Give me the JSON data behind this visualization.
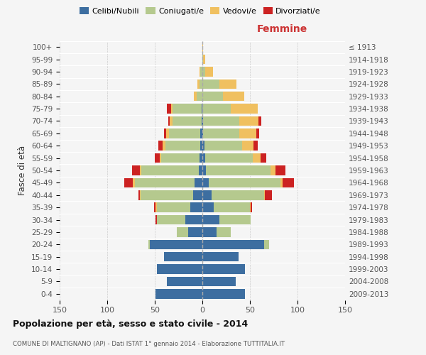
{
  "age_groups": [
    "0-4",
    "5-9",
    "10-14",
    "15-19",
    "20-24",
    "25-29",
    "30-34",
    "35-39",
    "40-44",
    "45-49",
    "50-54",
    "55-59",
    "60-64",
    "65-69",
    "70-74",
    "75-79",
    "80-84",
    "85-89",
    "90-94",
    "95-99",
    "100+"
  ],
  "birth_years": [
    "2009-2013",
    "2004-2008",
    "1999-2003",
    "1994-1998",
    "1989-1993",
    "1984-1988",
    "1979-1983",
    "1974-1978",
    "1969-1973",
    "1964-1968",
    "1959-1963",
    "1954-1958",
    "1949-1953",
    "1944-1948",
    "1939-1943",
    "1934-1938",
    "1929-1933",
    "1924-1928",
    "1919-1923",
    "1914-1918",
    "≤ 1913"
  ],
  "colors": {
    "celibi": "#3d6ea0",
    "coniugati": "#b5c98e",
    "vedovi": "#f0c060",
    "divorziati": "#cc2222"
  },
  "males": {
    "celibi": [
      49,
      37,
      48,
      40,
      55,
      15,
      18,
      13,
      10,
      8,
      4,
      3,
      2,
      2,
      1,
      1,
      0,
      0,
      0,
      0,
      0
    ],
    "coniugati": [
      0,
      0,
      0,
      0,
      2,
      12,
      30,
      35,
      55,
      63,
      60,
      40,
      37,
      33,
      30,
      30,
      6,
      3,
      2,
      0,
      0
    ],
    "vedovi": [
      0,
      0,
      0,
      0,
      0,
      0,
      0,
      1,
      1,
      2,
      2,
      2,
      3,
      3,
      3,
      2,
      3,
      2,
      1,
      0,
      0
    ],
    "divorziati": [
      0,
      0,
      0,
      0,
      0,
      0,
      1,
      2,
      1,
      9,
      8,
      5,
      4,
      2,
      2,
      4,
      0,
      0,
      0,
      0,
      0
    ]
  },
  "females": {
    "celibi": [
      45,
      35,
      45,
      38,
      65,
      15,
      18,
      12,
      10,
      7,
      4,
      3,
      2,
      1,
      1,
      0,
      0,
      0,
      0,
      0,
      0
    ],
    "coniugati": [
      0,
      0,
      0,
      0,
      5,
      15,
      33,
      38,
      55,
      75,
      68,
      50,
      40,
      38,
      38,
      30,
      22,
      18,
      3,
      1,
      0
    ],
    "vedovi": [
      0,
      0,
      0,
      0,
      0,
      0,
      0,
      1,
      1,
      2,
      5,
      8,
      12,
      18,
      20,
      28,
      22,
      18,
      8,
      2,
      1
    ],
    "divorziati": [
      0,
      0,
      0,
      0,
      0,
      0,
      0,
      1,
      7,
      12,
      10,
      6,
      4,
      3,
      3,
      0,
      0,
      0,
      0,
      0,
      0
    ]
  },
  "title": "Popolazione per età, sesso e stato civile - 2014",
  "subtitle": "COMUNE DI MALTIGNANO (AP) - Dati ISTAT 1° gennaio 2014 - Elaborazione TUTTITALIA.IT",
  "xlabel_right": "Femmine",
  "ylabel_left": "Fasce di età",
  "xlim": 150,
  "legend_labels": [
    "Celibi/Nubili",
    "Coniugati/e",
    "Vedovi/e",
    "Divorziati/e"
  ],
  "background_color": "#f5f5f5",
  "grid_color": "#cccccc"
}
